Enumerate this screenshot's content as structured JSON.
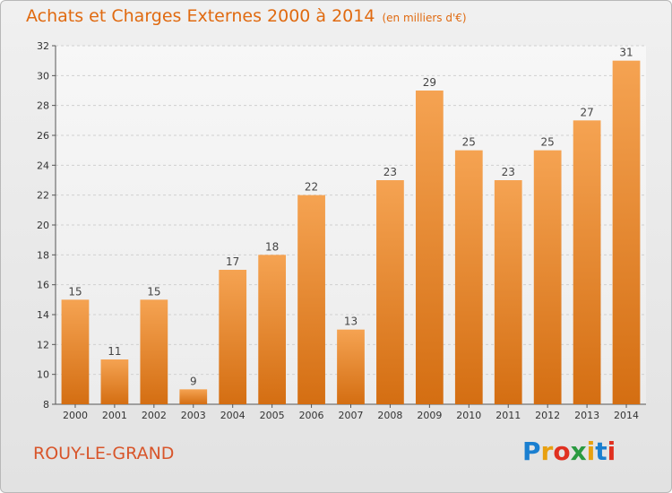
{
  "chart_data": {
    "type": "bar",
    "title": "Achats et Charges Externes 2000 à 2014",
    "subtitle": "(en milliers d'€)",
    "xlabel": "",
    "ylabel": "",
    "categories": [
      "2000",
      "2001",
      "2002",
      "2003",
      "2004",
      "2005",
      "2006",
      "2007",
      "2008",
      "2009",
      "2010",
      "2011",
      "2012",
      "2013",
      "2014"
    ],
    "values": [
      15,
      11,
      15,
      9,
      17,
      18,
      22,
      13,
      23,
      29,
      25,
      23,
      25,
      27,
      31
    ],
    "ylim": [
      8,
      32
    ],
    "yticks": [
      8,
      10,
      12,
      14,
      16,
      18,
      20,
      22,
      24,
      26,
      28,
      30,
      32
    ],
    "grid": true,
    "legend": "none",
    "bar_color_top": "#f5a352",
    "bar_color_bottom": "#d46e12"
  },
  "footer": {
    "town": "ROUY-LE-GRAND",
    "brand_letters": [
      "P",
      "r",
      "o",
      "x",
      "i",
      "t",
      "i"
    ],
    "brand_colors": [
      "#1a7fd0",
      "#e8a010",
      "#e03020",
      "#2a9a40",
      "#e8a010",
      "#1a7fd0",
      "#e03020"
    ]
  },
  "colors": {
    "title": "#e06a10",
    "town": "#d8552a"
  }
}
